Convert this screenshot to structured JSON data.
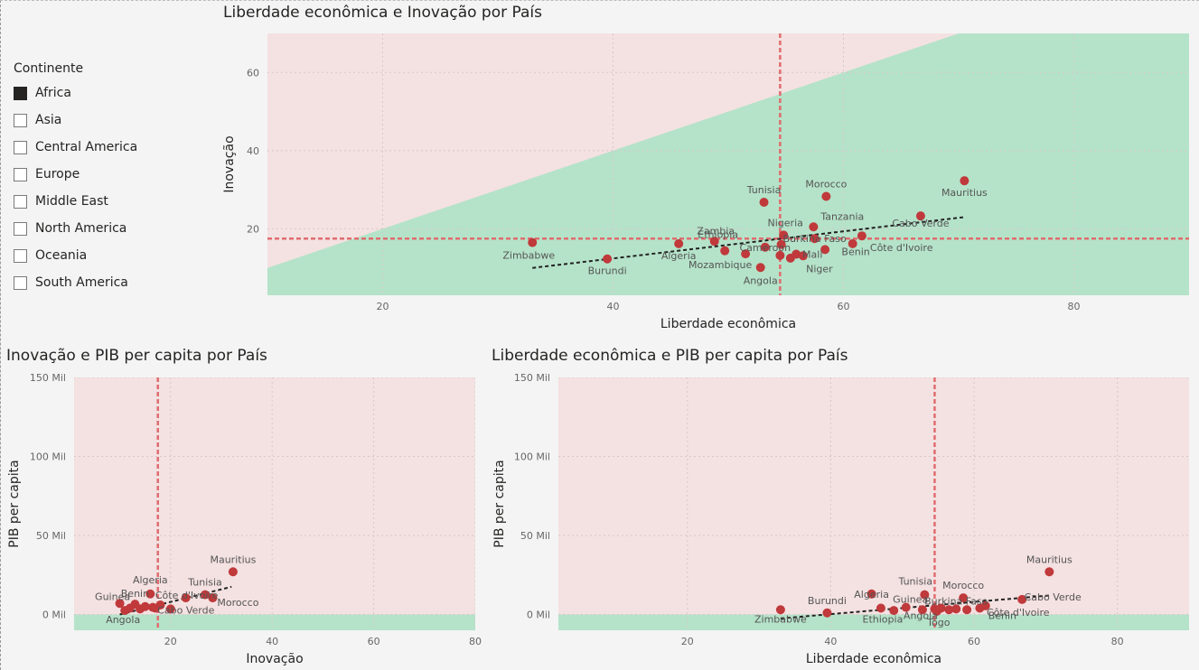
{
  "legend": {
    "title": "Continente",
    "items": [
      {
        "label": "Africa",
        "checked": true
      },
      {
        "label": "Asia",
        "checked": false
      },
      {
        "label": "Central America",
        "checked": false
      },
      {
        "label": "Europe",
        "checked": false
      },
      {
        "label": "Middle East",
        "checked": false
      },
      {
        "label": "North America",
        "checked": false
      },
      {
        "label": "Oceania",
        "checked": false
      },
      {
        "label": "South America",
        "checked": false
      }
    ]
  },
  "colors": {
    "point": "#c0393b",
    "region_above": "#f4e1e1",
    "region_below": "#b5e3c9",
    "reference_line": "#e06c6e",
    "trend_line": "#222222"
  },
  "chart_data": [
    {
      "type": "scatter",
      "title": "Liberdade econômica e Inovação por País",
      "xlabel": "Liberdade econômica",
      "ylabel": "Inovação",
      "xlim": [
        10,
        90
      ],
      "ylim": [
        3,
        70
      ],
      "xticks": [
        20,
        40,
        60,
        80
      ],
      "yticks": [
        20,
        40,
        60
      ],
      "ytick_labels": [
        "20",
        "40",
        "60"
      ],
      "grid": true,
      "ref_x": 54.5,
      "ref_y": 17.5,
      "region": "diagonal",
      "trend": [
        [
          33,
          10
        ],
        [
          70.5,
          23
        ]
      ],
      "points": [
        {
          "x": 33,
          "y": 16.5,
          "label": "Zimbabwe"
        },
        {
          "x": 39.5,
          "y": 12.3,
          "label": "Burundi"
        },
        {
          "x": 45.7,
          "y": 16.2,
          "label": "Algeria"
        },
        {
          "x": 48.8,
          "y": 16.8,
          "label": "Ethiopia"
        },
        {
          "x": 49.7,
          "y": 14.4,
          "label": "Zambia"
        },
        {
          "x": 51.5,
          "y": 13.6,
          "label": "Mozambique"
        },
        {
          "x": 52.8,
          "y": 10.1,
          "label": "Angola"
        },
        {
          "x": 53.2,
          "y": 15.3,
          "label": "Cameroon"
        },
        {
          "x": 53.1,
          "y": 26.8,
          "label": "Tunisia"
        },
        {
          "x": 54.5,
          "y": 13.2,
          "label": ""
        },
        {
          "x": 54.6,
          "y": 16.0,
          "label": ""
        },
        {
          "x": 54.8,
          "y": 18.4,
          "label": "Nigeria"
        },
        {
          "x": 55.4,
          "y": 12.5,
          "label": ""
        },
        {
          "x": 55.9,
          "y": 13.5,
          "label": "Mali"
        },
        {
          "x": 56.5,
          "y": 13.1,
          "label": "Niger"
        },
        {
          "x": 57.4,
          "y": 20.5,
          "label": "Tanzania"
        },
        {
          "x": 57.5,
          "y": 17.5,
          "label": "Burkina Faso"
        },
        {
          "x": 58.5,
          "y": 28.3,
          "label": "Morocco"
        },
        {
          "x": 58.4,
          "y": 14.7,
          "label": "Benin"
        },
        {
          "x": 60.8,
          "y": 16.2,
          "label": "Côte d'Ivoire"
        },
        {
          "x": 61.6,
          "y": 18.2,
          "label": ""
        },
        {
          "x": 66.7,
          "y": 23.3,
          "label": "Cabo Verde"
        },
        {
          "x": 70.5,
          "y": 32.3,
          "label": "Mauritius"
        }
      ]
    },
    {
      "type": "scatter",
      "title": "Inovação e PIB per capita por País",
      "xlabel": "Inovação",
      "ylabel": "PIB per capita",
      "xlim": [
        1,
        80
      ],
      "ylim": [
        -10000,
        150000
      ],
      "xticks": [
        20,
        40,
        60,
        80
      ],
      "yticks": [
        0,
        50000,
        100000,
        150000
      ],
      "ytick_labels": [
        "0 Mil",
        "50 Mil",
        "100 Mil",
        "150 Mil"
      ],
      "grid": true,
      "ref_x": 17.5,
      "ref_y": 0,
      "region": "horizontal",
      "trend": [
        [
          10,
          0
        ],
        [
          32,
          17500
        ]
      ],
      "points": [
        {
          "x": 10,
          "y": 7000,
          "label": "Guinea"
        },
        {
          "x": 11,
          "y": 2500,
          "label": "Angola"
        },
        {
          "x": 12,
          "y": 4000,
          "label": ""
        },
        {
          "x": 13,
          "y": 6500,
          "label": "Benin"
        },
        {
          "x": 14,
          "y": 3500,
          "label": ""
        },
        {
          "x": 15,
          "y": 5000,
          "label": ""
        },
        {
          "x": 16,
          "y": 13000,
          "label": "Algeria"
        },
        {
          "x": 16.5,
          "y": 4500,
          "label": ""
        },
        {
          "x": 17,
          "y": 4000,
          "label": ""
        },
        {
          "x": 18,
          "y": 6000,
          "label": ""
        },
        {
          "x": 20,
          "y": 3500,
          "label": "Cabo Verde"
        },
        {
          "x": 23,
          "y": 10500,
          "label": "Côte d'Ivoire"
        },
        {
          "x": 26.8,
          "y": 12500,
          "label": "Tunisia"
        },
        {
          "x": 28.3,
          "y": 10500,
          "label": "Morocco"
        },
        {
          "x": 32.3,
          "y": 27000,
          "label": "Mauritius"
        }
      ]
    },
    {
      "type": "scatter",
      "title": "Liberdade econômica e PIB per capita por País",
      "xlabel": "Liberdade econômica",
      "ylabel": "PIB per capita",
      "xlim": [
        2,
        90
      ],
      "ylim": [
        -10000,
        150000
      ],
      "xticks": [
        20,
        40,
        60,
        80
      ],
      "yticks": [
        0,
        50000,
        100000,
        150000
      ],
      "ytick_labels": [
        "0 Mil",
        "50 Mil",
        "100 Mil",
        "150 Mil"
      ],
      "grid": true,
      "ref_x": 54.5,
      "ref_y": 0,
      "region": "horizontal",
      "trend": [
        [
          33,
          -2500
        ],
        [
          70.5,
          12000
        ]
      ],
      "points": [
        {
          "x": 33,
          "y": 3000,
          "label": "Zimbabwe"
        },
        {
          "x": 39.5,
          "y": 1000,
          "label": "Burundi"
        },
        {
          "x": 45.7,
          "y": 13000,
          "label": "Algeria"
        },
        {
          "x": 47,
          "y": 4000,
          "label": "Ethiopia"
        },
        {
          "x": 48.8,
          "y": 2500,
          "label": ""
        },
        {
          "x": 50.5,
          "y": 4500,
          "label": "Guinea"
        },
        {
          "x": 52.8,
          "y": 3000,
          "label": "Angola"
        },
        {
          "x": 53.1,
          "y": 12500,
          "label": "Tunisia"
        },
        {
          "x": 54.5,
          "y": 3500,
          "label": ""
        },
        {
          "x": 54.8,
          "y": 2000,
          "label": "Togo"
        },
        {
          "x": 55.4,
          "y": 4000,
          "label": ""
        },
        {
          "x": 56.5,
          "y": 3000,
          "label": ""
        },
        {
          "x": 57.5,
          "y": 3500,
          "label": "Burkina Faso"
        },
        {
          "x": 58.5,
          "y": 10500,
          "label": "Morocco"
        },
        {
          "x": 59,
          "y": 3000,
          "label": ""
        },
        {
          "x": 60.8,
          "y": 4000,
          "label": "Benin"
        },
        {
          "x": 61.6,
          "y": 5500,
          "label": "Côte d'Ivoire"
        },
        {
          "x": 66.7,
          "y": 9500,
          "label": "Cabo Verde"
        },
        {
          "x": 70.5,
          "y": 27000,
          "label": "Mauritius"
        }
      ]
    }
  ]
}
